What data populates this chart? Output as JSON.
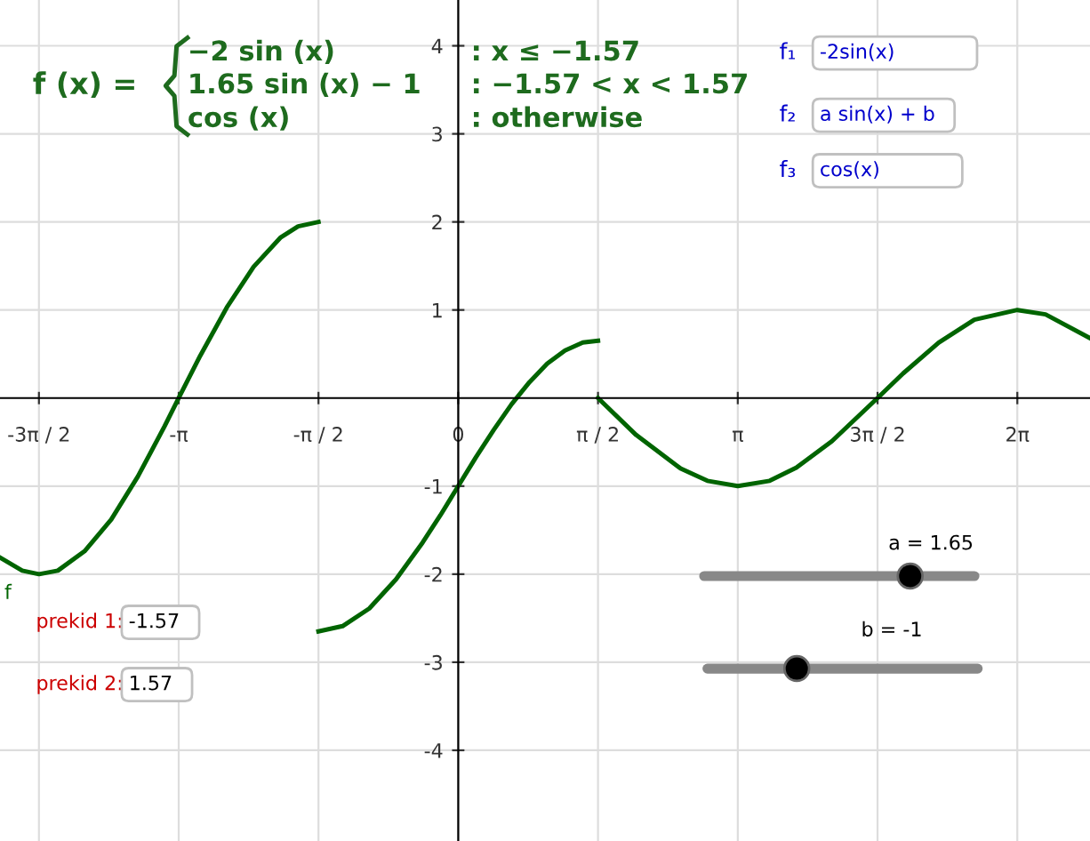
{
  "chart_data": {
    "type": "line",
    "series": [
      {
        "name": "f",
        "color": "#006400",
        "x": [
          -5.15,
          -4.9,
          -4.712,
          -4.5,
          -4.2,
          -3.9,
          -3.6,
          -3.3,
          -3.1416,
          -2.9,
          -2.6,
          -2.3,
          -2.0,
          -1.8,
          -1.5708
        ],
        "values": [
          -1.81,
          -1.96,
          -2.0,
          -1.96,
          -1.74,
          -1.38,
          -0.89,
          -0.32,
          0,
          0.48,
          1.03,
          1.49,
          1.82,
          1.95,
          2.0
        ]
      },
      {
        "color": "#006400",
        "x": [
          -1.5708,
          -1.3,
          -1.0,
          -0.7,
          -0.4,
          -0.2,
          0,
          0.2,
          0.4,
          0.6,
          0.8,
          1.0,
          1.2,
          1.4,
          1.5708
        ],
        "values": [
          -2.65,
          -2.59,
          -2.39,
          -2.06,
          -1.64,
          -1.33,
          -1.0,
          -0.67,
          -0.36,
          -0.07,
          0.18,
          0.39,
          0.54,
          0.63,
          0.65
        ]
      },
      {
        "color": "#006400",
        "x": [
          1.5708,
          2.0,
          2.5,
          2.8,
          3.1416,
          3.5,
          3.8,
          4.2,
          4.712,
          5.0,
          5.4,
          5.8,
          6.2832,
          6.6,
          7.1
        ],
        "values": [
          0,
          -0.42,
          -0.8,
          -0.94,
          -1.0,
          -0.94,
          -0.79,
          -0.49,
          0,
          0.28,
          0.63,
          0.89,
          1.0,
          0.95,
          0.68
        ]
      }
    ],
    "xlim": [
      -5.15,
      7.1
    ],
    "ylim": [
      -5.03,
      4.52
    ],
    "xticks": [
      {
        "value": -4.7124,
        "label": "-3π / 2"
      },
      {
        "value": -3.1416,
        "label": "-π"
      },
      {
        "value": -1.5708,
        "label": "-π / 2"
      },
      {
        "value": 0,
        "label": "0"
      },
      {
        "value": 1.5708,
        "label": "π / 2"
      },
      {
        "value": 3.1416,
        "label": "π"
      },
      {
        "value": 4.7124,
        "label": "3π / 2"
      },
      {
        "value": 6.2832,
        "label": "2π"
      }
    ],
    "yticks": [
      -4,
      -3,
      -2,
      -1,
      1,
      2,
      3,
      4
    ],
    "grid": true,
    "legend": false,
    "line_style": "solid",
    "marker": "none",
    "annotations": [
      "f (x) =",
      "−2 sin (x)",
      ": x ≤ −1.57",
      "1.65 sin (x) − 1",
      ": −1.57 < x < 1.57",
      "cos (x)",
      ": otherwise",
      "f₁",
      "-2sin(x)",
      "f₂",
      "a sin(x) + b",
      "f₃",
      "cos(x)",
      "prekid 1:",
      "-1.57",
      "prekid 2:",
      "1.57",
      "a = 1.65",
      "b = -1"
    ]
  }
}
